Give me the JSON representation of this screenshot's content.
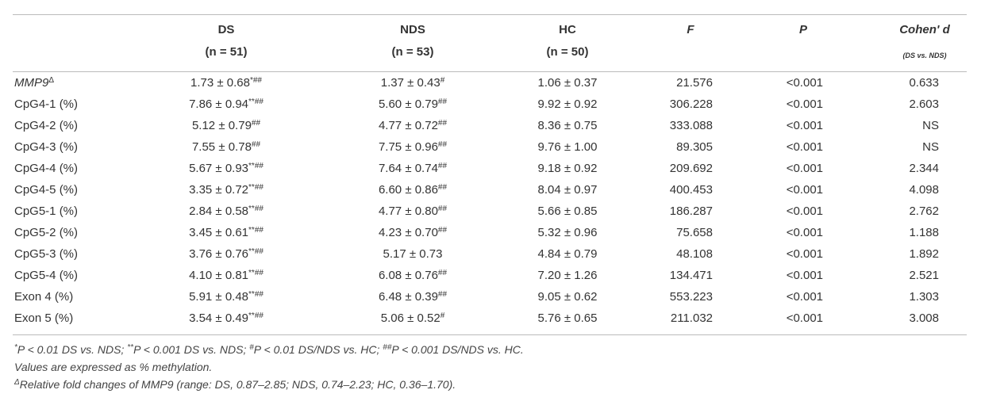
{
  "table": {
    "header": [
      {
        "label": "DS",
        "n": "(n = 51)"
      },
      {
        "label": "NDS",
        "n": "(n = 53)"
      },
      {
        "label": "HC",
        "n": "(n = 50)"
      },
      {
        "label": "F"
      },
      {
        "label": "P"
      },
      {
        "label": "Cohen' d",
        "n": "(DS vs. NDS)"
      }
    ],
    "rows": [
      [
        {
          "text": "MMP9",
          "sup": "Δ",
          "italic": true
        },
        {
          "text": "1.73 ± 0.68",
          "sup": "*##"
        },
        {
          "text": "1.37 ± 0.43",
          "sup": "#"
        },
        "1.06 ± 0.37",
        "21.576",
        "<0.001",
        "0.633"
      ],
      [
        "CpG4-1 (%)",
        {
          "text": "7.86 ± 0.94",
          "sup": "**##"
        },
        {
          "text": "5.60 ± 0.79",
          "sup": "##"
        },
        "9.92 ± 0.92",
        "306.228",
        "<0.001",
        "2.603"
      ],
      [
        "CpG4-2 (%)",
        {
          "text": "5.12 ± 0.79",
          "sup": "##"
        },
        {
          "text": "4.77 ± 0.72",
          "sup": "##"
        },
        "8.36 ± 0.75",
        "333.088",
        "<0.001",
        "NS"
      ],
      [
        "CpG4-3 (%)",
        {
          "text": "7.55 ± 0.78",
          "sup": "##"
        },
        {
          "text": "7.75 ± 0.96",
          "sup": "##"
        },
        "9.76 ± 1.00",
        "89.305",
        "<0.001",
        "NS"
      ],
      [
        "CpG4-4 (%)",
        {
          "text": "5.67 ± 0.93",
          "sup": "**##"
        },
        {
          "text": "7.64 ± 0.74",
          "sup": "##"
        },
        "9.18 ± 0.92",
        "209.692",
        "<0.001",
        "2.344"
      ],
      [
        "CpG4-5 (%)",
        {
          "text": "3.35 ± 0.72",
          "sup": "**##"
        },
        {
          "text": "6.60 ± 0.86",
          "sup": "##"
        },
        "8.04 ± 0.97",
        "400.453",
        "<0.001",
        "4.098"
      ],
      [
        "CpG5-1 (%)",
        {
          "text": "2.84 ± 0.58",
          "sup": "**##"
        },
        {
          "text": "4.77 ± 0.80",
          "sup": "##"
        },
        "5.66 ± 0.85",
        "186.287",
        "<0.001",
        "2.762"
      ],
      [
        "CpG5-2 (%)",
        {
          "text": "3.45 ± 0.61",
          "sup": "**##"
        },
        {
          "text": "4.23 ± 0.70",
          "sup": "##"
        },
        "5.32 ± 0.96",
        "75.658",
        "<0.001",
        "1.188"
      ],
      [
        "CpG5-3 (%)",
        {
          "text": "3.76 ± 0.76",
          "sup": "**##"
        },
        "5.17 ± 0.73",
        "4.84 ± 0.79",
        "48.108",
        "<0.001",
        "1.892"
      ],
      [
        "CpG5-4 (%)",
        {
          "text": "4.10 ± 0.81",
          "sup": "**##"
        },
        {
          "text": "6.08 ± 0.76",
          "sup": "##"
        },
        "7.20 ± 1.26",
        "134.471",
        "<0.001",
        "2.521"
      ],
      [
        "Exon 4 (%)",
        {
          "text": "5.91 ± 0.48",
          "sup": "**##"
        },
        {
          "text": "6.48 ± 0.39",
          "sup": "##"
        },
        "9.05 ± 0.62",
        "553.223",
        "<0.001",
        "1.303"
      ],
      [
        "Exon 5 (%)",
        {
          "text": "3.54 ± 0.49",
          "sup": "**##"
        },
        {
          "text": "5.06 ± 0.52",
          "sup": "#"
        },
        "5.76 ± 0.65",
        "211.032",
        "<0.001",
        "3.008"
      ]
    ]
  },
  "footnotes": [
    [
      {
        "sup": "*",
        "text": "P < 0.01 DS vs. NDS; "
      },
      {
        "sup": "**",
        "text": "P < 0.001 DS vs. NDS; "
      },
      {
        "sup": "#",
        "text": "P < 0.01 DS/NDS vs. HC; "
      },
      {
        "sup": "##",
        "text": "P < 0.001 DS/NDS vs. HC."
      }
    ],
    [
      {
        "text": "Values are expressed as % methylation."
      }
    ],
    [
      {
        "sup": "Δ",
        "text": "Relative fold changes of MMP9 (range: DS, 0.87–2.85; NDS, 0.74–2.23; HC, 0.36–1.70)."
      }
    ]
  ]
}
